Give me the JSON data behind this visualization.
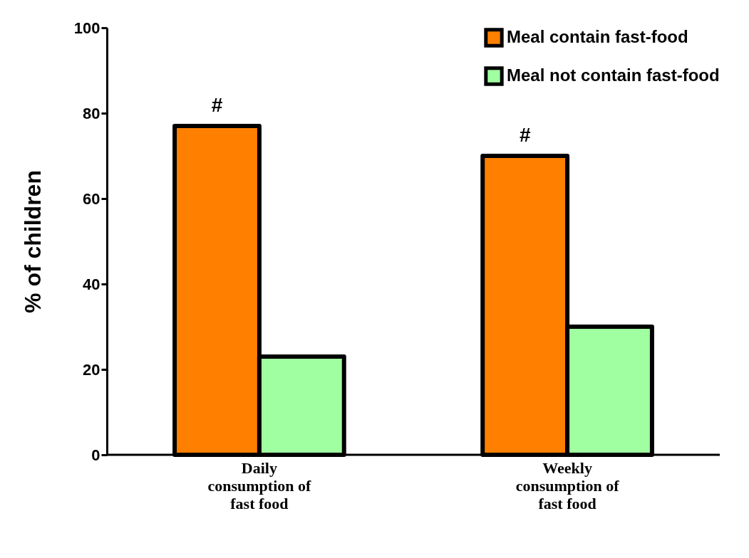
{
  "chart_data": {
    "type": "bar",
    "ylabel": "% of children",
    "categories": [
      "Daily consumption of fast food",
      "Weekly consumption of fast food"
    ],
    "series": [
      {
        "name": "Meal contain fast-food",
        "color": "#ff8000",
        "values": [
          77,
          70
        ]
      },
      {
        "name": "Meal not contain fast-food",
        "color": "#a0ffa0",
        "values": [
          23,
          30
        ]
      }
    ],
    "ylim": [
      0,
      100
    ],
    "yticks": [
      0,
      20,
      40,
      60,
      80,
      100
    ],
    "grid": false,
    "legend": "top right",
    "annotations": [
      {
        "text": "#",
        "x": "Daily consumption of fast food",
        "y": 77
      },
      {
        "text": "#",
        "x": "Weekly consumption of fast food",
        "y": 70
      }
    ]
  }
}
